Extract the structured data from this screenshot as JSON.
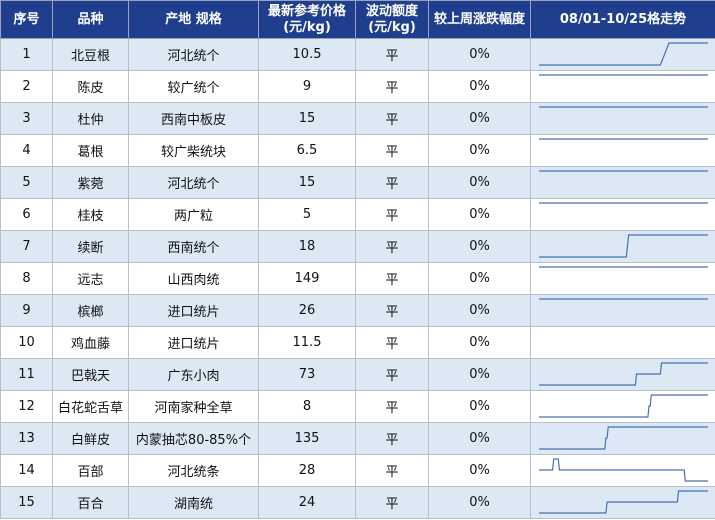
{
  "accent": "#1f3f8e",
  "row_alt_color": "#dde8f5",
  "spark_color": "#4a6fb0",
  "headers": {
    "h0": "序号",
    "h1": "品种",
    "h2": "产地 规格",
    "h3a": "最新参考价格",
    "h3b": "(元/kg)",
    "h4a": "波动额度",
    "h4b": "(元/kg)",
    "h5": "较上周涨跌幅度",
    "h6": "08/01-10/25格走势"
  },
  "rows": [
    {
      "no": "1",
      "name": "北豆根",
      "spec": "河北统个",
      "price": "10.5",
      "change": "平",
      "pct": "0%",
      "trend": [
        1,
        1,
        1,
        1,
        1,
        1,
        1,
        1,
        1,
        1,
        1,
        1,
        1,
        1,
        1,
        1,
        1,
        1,
        1,
        1,
        1,
        1,
        1,
        1,
        1,
        1,
        1,
        1,
        1,
        2,
        3,
        3,
        3,
        3,
        3,
        3,
        3,
        3,
        3,
        3
      ]
    },
    {
      "no": "2",
      "name": "陈皮",
      "spec": "较广统个",
      "price": "9",
      "change": "平",
      "pct": "0%",
      "trend": [
        3,
        3,
        3,
        3,
        3,
        3,
        3,
        3,
        3,
        3,
        3,
        3,
        3,
        3,
        3,
        3,
        3,
        3,
        3,
        3,
        3,
        3,
        3,
        3,
        3,
        3,
        3,
        3,
        3,
        3,
        3,
        3,
        3,
        3,
        3,
        3,
        3,
        3,
        3,
        3
      ]
    },
    {
      "no": "3",
      "name": "杜仲",
      "spec": "西南中板皮",
      "price": "15",
      "change": "平",
      "pct": "0%",
      "trend": [
        3,
        3,
        3,
        3,
        3,
        3,
        3,
        3,
        3,
        3,
        3,
        3,
        3,
        3,
        3,
        3,
        3,
        3,
        3,
        3,
        3,
        3,
        3,
        3,
        3,
        3,
        3,
        3,
        3,
        3,
        3,
        3,
        3,
        3,
        3,
        3,
        3,
        3,
        3,
        3
      ]
    },
    {
      "no": "4",
      "name": "葛根",
      "spec": "较广柴统块",
      "price": "6.5",
      "change": "平",
      "pct": "0%",
      "trend": [
        3,
        3,
        3,
        3,
        3,
        3,
        3,
        3,
        3,
        3,
        3,
        3,
        3,
        3,
        3,
        3,
        3,
        3,
        3,
        3,
        3,
        3,
        3,
        3,
        3,
        3,
        3,
        3,
        3,
        3,
        3,
        3,
        3,
        3,
        3,
        3,
        3,
        3,
        3,
        3
      ]
    },
    {
      "no": "5",
      "name": "紫菀",
      "spec": "河北统个",
      "price": "15",
      "change": "平",
      "pct": "0%",
      "trend": [
        3,
        3,
        3,
        3,
        3,
        3,
        3,
        3,
        3,
        3,
        3,
        3,
        3,
        3,
        3,
        3,
        3,
        3,
        3,
        3,
        3,
        3,
        3,
        3,
        3,
        3,
        3,
        3,
        3,
        3,
        3,
        3,
        3,
        3,
        3,
        3,
        3,
        3,
        3,
        3
      ]
    },
    {
      "no": "6",
      "name": "桂枝",
      "spec": "两广粒",
      "price": "5",
      "change": "平",
      "pct": "0%",
      "trend": [
        3,
        3,
        3,
        3,
        3,
        3,
        3,
        3,
        3,
        3,
        3,
        3,
        3,
        3,
        3,
        3,
        3,
        3,
        3,
        3,
        3,
        3,
        3,
        3,
        3,
        3,
        3,
        3,
        3,
        3,
        3,
        3,
        3,
        3,
        3,
        3,
        3,
        3,
        3,
        3
      ]
    },
    {
      "no": "7",
      "name": "续断",
      "spec": "西南统个",
      "price": "18",
      "change": "平",
      "pct": "0%",
      "trend": [
        1,
        1,
        1,
        1,
        1,
        1,
        1,
        1,
        1,
        1,
        1,
        1,
        1,
        1,
        1,
        1,
        1,
        1,
        1,
        1,
        1,
        1,
        1,
        1,
        1,
        1,
        1,
        1,
        1,
        1,
        1,
        1,
        1,
        1,
        1,
        1,
        1,
        1,
        1,
        1,
        1,
        1,
        1,
        1,
        1,
        1,
        1,
        1,
        1,
        1,
        1,
        1,
        1,
        1,
        1,
        1,
        1,
        1,
        1,
        1,
        1,
        1,
        1,
        1,
        1,
        1,
        1,
        1,
        1,
        1,
        1,
        1,
        1,
        1,
        1,
        1,
        1,
        1,
        2,
        3,
        3,
        3,
        3,
        3,
        3,
        3,
        3,
        3,
        3,
        3,
        3,
        3,
        3,
        3,
        3,
        3,
        3,
        3,
        3,
        3,
        3,
        3,
        3,
        3,
        3,
        3,
        3,
        3,
        3,
        3,
        3,
        3,
        3,
        3,
        3,
        3,
        3,
        3,
        3,
        3,
        3,
        3,
        3,
        3,
        3,
        3,
        3,
        3,
        3,
        3,
        3,
        3,
        3,
        3,
        3,
        3,
        3,
        3,
        3,
        3,
        3,
        3,
        3,
        3,
        3,
        3,
        3,
        3,
        3,
        3
      ]
    },
    {
      "no": "8",
      "name": "远志",
      "spec": "山西肉统",
      "price": "149",
      "change": "平",
      "pct": "0%",
      "trend": [
        3,
        3,
        3,
        3,
        3,
        3,
        3,
        3,
        3,
        3,
        3,
        3,
        3,
        3,
        3,
        3,
        3,
        3,
        3,
        3,
        3,
        3,
        3,
        3,
        3,
        3,
        3,
        3,
        3,
        3,
        3,
        3,
        3,
        3,
        3,
        3,
        3,
        3,
        3,
        3
      ]
    },
    {
      "no": "9",
      "name": "槟榔",
      "spec": "进口统片",
      "price": "26",
      "change": "平",
      "pct": "0%",
      "trend": [
        3,
        3,
        3,
        3,
        3,
        3,
        3,
        3,
        3,
        3,
        3,
        3,
        3,
        3,
        3,
        3,
        3,
        3,
        3,
        3,
        3,
        3,
        3,
        3,
        3,
        3,
        3,
        3,
        3,
        3,
        3,
        3,
        3,
        3,
        3,
        3,
        3,
        3,
        3,
        3
      ]
    },
    {
      "no": "10",
      "name": "鸡血藤",
      "spec": "进口统片",
      "price": "11.5",
      "change": "平",
      "pct": "0%",
      "trend": []
    },
    {
      "no": "11",
      "name": "巴戟天",
      "spec": "广东小肉",
      "price": "73",
      "change": "平",
      "pct": "0%",
      "trend": [
        1,
        1,
        1,
        1,
        1,
        1,
        1,
        1,
        1,
        1,
        1,
        1,
        1,
        1,
        1,
        1,
        1,
        1,
        1,
        1,
        1,
        1,
        1,
        1,
        1,
        1,
        1,
        1,
        1,
        1,
        1,
        1,
        1,
        1,
        1,
        1,
        1,
        1,
        1,
        1,
        1,
        1,
        1,
        1,
        1,
        1,
        1,
        1,
        1,
        1,
        1,
        1,
        1,
        1,
        1,
        1,
        1,
        1,
        1,
        1,
        1,
        1,
        1,
        1,
        1,
        1,
        1,
        1,
        1,
        1,
        1,
        1,
        1,
        1,
        1,
        1,
        1,
        1,
        1,
        1,
        1,
        1,
        1,
        1,
        1,
        1,
        2,
        2,
        2,
        2,
        2,
        2,
        2,
        2,
        2,
        2,
        2,
        2,
        2,
        2,
        2,
        2,
        2,
        2,
        2,
        2,
        2,
        2,
        3,
        3,
        3,
        3,
        3,
        3,
        3,
        3,
        3,
        3,
        3,
        3,
        3,
        3,
        3,
        3,
        3,
        3,
        3,
        3,
        3,
        3,
        3,
        3,
        3,
        3,
        3,
        3,
        3,
        3,
        3,
        3,
        3,
        3,
        3,
        3,
        3,
        3,
        3,
        3,
        3,
        3
      ]
    },
    {
      "no": "12",
      "name": "白花蛇舌草",
      "spec": "河南家种全草",
      "price": "8",
      "change": "平",
      "pct": "0%",
      "trend": [
        1,
        1,
        1,
        1,
        1,
        1,
        1,
        1,
        1,
        1,
        1,
        1,
        1,
        1,
        1,
        1,
        1,
        1,
        1,
        1,
        1,
        1,
        1,
        1,
        1,
        1,
        1,
        1,
        1,
        1,
        1,
        1,
        1,
        1,
        1,
        1,
        1,
        1,
        1,
        1,
        1,
        1,
        1,
        1,
        1,
        1,
        1,
        1,
        1,
        1,
        1,
        1,
        1,
        1,
        1,
        1,
        1,
        1,
        1,
        1,
        1,
        1,
        1,
        1,
        1,
        1,
        1,
        1,
        1,
        1,
        1,
        1,
        1,
        1,
        1,
        1,
        1,
        1,
        1,
        1,
        1,
        1,
        1,
        1,
        1,
        1,
        1,
        1,
        1,
        1,
        1,
        1,
        1,
        1,
        1,
        1,
        1,
        2,
        2,
        3,
        3,
        3,
        3,
        3,
        3,
        3,
        3,
        3,
        3,
        3,
        3,
        3,
        3,
        3,
        3,
        3,
        3,
        3,
        3,
        3,
        3,
        3,
        3,
        3,
        3,
        3,
        3,
        3,
        3,
        3,
        3,
        3,
        3,
        3,
        3,
        3,
        3,
        3,
        3,
        3,
        3,
        3,
        3,
        3,
        3,
        3,
        3,
        3,
        3,
        3
      ]
    },
    {
      "no": "13",
      "name": "白鲜皮",
      "spec": "内蒙抽芯80-85%个",
      "price": "135",
      "change": "平",
      "pct": "0%",
      "trend": [
        1,
        1,
        1,
        1,
        1,
        1,
        1,
        1,
        1,
        1,
        1,
        1,
        1,
        1,
        1,
        1,
        1,
        1,
        1,
        1,
        1,
        1,
        1,
        1,
        1,
        1,
        1,
        1,
        1,
        1,
        1,
        1,
        1,
        1,
        1,
        1,
        1,
        1,
        1,
        1,
        1,
        1,
        1,
        1,
        1,
        1,
        1,
        1,
        1,
        1,
        1,
        1,
        1,
        1,
        1,
        1,
        1,
        1,
        1,
        2,
        2,
        3,
        3,
        3,
        3,
        3,
        3,
        3,
        3,
        3,
        3,
        3,
        3,
        3,
        3,
        3,
        3,
        3,
        3,
        3,
        3,
        3,
        3,
        3,
        3,
        3,
        3,
        3,
        3,
        3,
        3,
        3,
        3,
        3,
        3,
        3,
        3,
        3,
        3,
        3,
        3,
        3,
        3,
        3,
        3,
        3,
        3,
        3,
        3,
        3,
        3,
        3,
        3,
        3,
        3,
        3,
        3,
        3,
        3,
        3,
        3,
        3,
        3,
        3,
        3,
        3,
        3,
        3,
        3,
        3,
        3,
        3,
        3,
        3,
        3,
        3,
        3,
        3,
        3,
        3,
        3,
        3,
        3,
        3,
        3,
        3,
        3,
        3,
        3,
        3
      ]
    },
    {
      "no": "14",
      "name": "百部",
      "spec": "河北统条",
      "price": "28",
      "change": "平",
      "pct": "0%",
      "trend": [
        2,
        2,
        2,
        2,
        2,
        2,
        2,
        2,
        2,
        2,
        2,
        2,
        2,
        3,
        3,
        3,
        3,
        3,
        2,
        2,
        2,
        2,
        2,
        2,
        2,
        2,
        2,
        2,
        2,
        2,
        2,
        2,
        2,
        2,
        2,
        2,
        2,
        2,
        2,
        2,
        2,
        2,
        2,
        2,
        2,
        2,
        2,
        2,
        2,
        2,
        2,
        2,
        2,
        2,
        2,
        2,
        2,
        2,
        2,
        2,
        2,
        2,
        2,
        2,
        2,
        2,
        2,
        2,
        2,
        2,
        2,
        2,
        2,
        2,
        2,
        2,
        2,
        2,
        2,
        2,
        2,
        2,
        2,
        2,
        2,
        2,
        2,
        2,
        2,
        2,
        2,
        2,
        2,
        2,
        2,
        2,
        2,
        2,
        2,
        2,
        2,
        2,
        2,
        2,
        2,
        2,
        2,
        2,
        2,
        2,
        2,
        2,
        2,
        2,
        2,
        2,
        2,
        2,
        2,
        2,
        2,
        2,
        2,
        2,
        2,
        2,
        2,
        2,
        2,
        1,
        1,
        1,
        1,
        1,
        1,
        1,
        1,
        1,
        1,
        1,
        1,
        1,
        1,
        1,
        1,
        1,
        1,
        1,
        1,
        1
      ]
    },
    {
      "no": "15",
      "name": "百合",
      "spec": "湖南统",
      "price": "24",
      "change": "平",
      "pct": "0%",
      "trend": [
        1,
        1,
        1,
        1,
        1,
        1,
        1,
        1,
        1,
        1,
        1,
        1,
        1,
        1,
        1,
        1,
        1,
        1,
        1,
        1,
        1,
        1,
        1,
        1,
        1,
        1,
        1,
        1,
        1,
        1,
        1,
        1,
        1,
        1,
        1,
        1,
        1,
        1,
        1,
        1,
        1,
        1,
        1,
        1,
        1,
        1,
        1,
        1,
        1,
        1,
        1,
        1,
        1,
        1,
        1,
        1,
        1,
        1,
        1,
        1,
        2,
        2,
        2,
        2,
        2,
        2,
        2,
        2,
        2,
        2,
        2,
        2,
        2,
        2,
        2,
        2,
        2,
        2,
        2,
        2,
        2,
        2,
        2,
        2,
        2,
        2,
        2,
        2,
        2,
        2,
        2,
        2,
        2,
        2,
        2,
        2,
        2,
        2,
        2,
        2,
        2,
        2,
        2,
        2,
        2,
        2,
        2,
        2,
        2,
        2,
        2,
        2,
        2,
        2,
        2,
        2,
        2,
        2,
        2,
        2,
        2,
        2,
        2,
        3,
        3,
        3,
        3,
        3,
        3,
        3,
        3,
        3,
        3,
        3,
        3,
        3,
        3,
        3,
        3,
        3,
        3,
        3,
        3,
        3,
        3,
        3,
        3,
        3,
        3,
        3
      ]
    }
  ]
}
